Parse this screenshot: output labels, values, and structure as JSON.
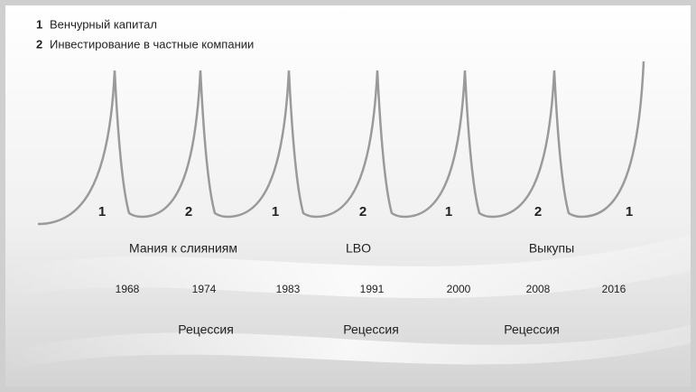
{
  "legend": [
    {
      "number": "1",
      "label": "Венчурный капитал"
    },
    {
      "number": "2",
      "label": "Инвестирование в частные компании"
    }
  ],
  "cycles": [
    "1",
    "2",
    "1",
    "2",
    "1",
    "2",
    "1"
  ],
  "eras": [
    "Мания к слияниям",
    "LBO",
    "Выкупы"
  ],
  "years": [
    "1968",
    "1974",
    "1983",
    "1991",
    "2000",
    "2008",
    "2016"
  ],
  "recessions": [
    "Рецессия",
    "Рецессия",
    "Рецессия"
  ]
}
